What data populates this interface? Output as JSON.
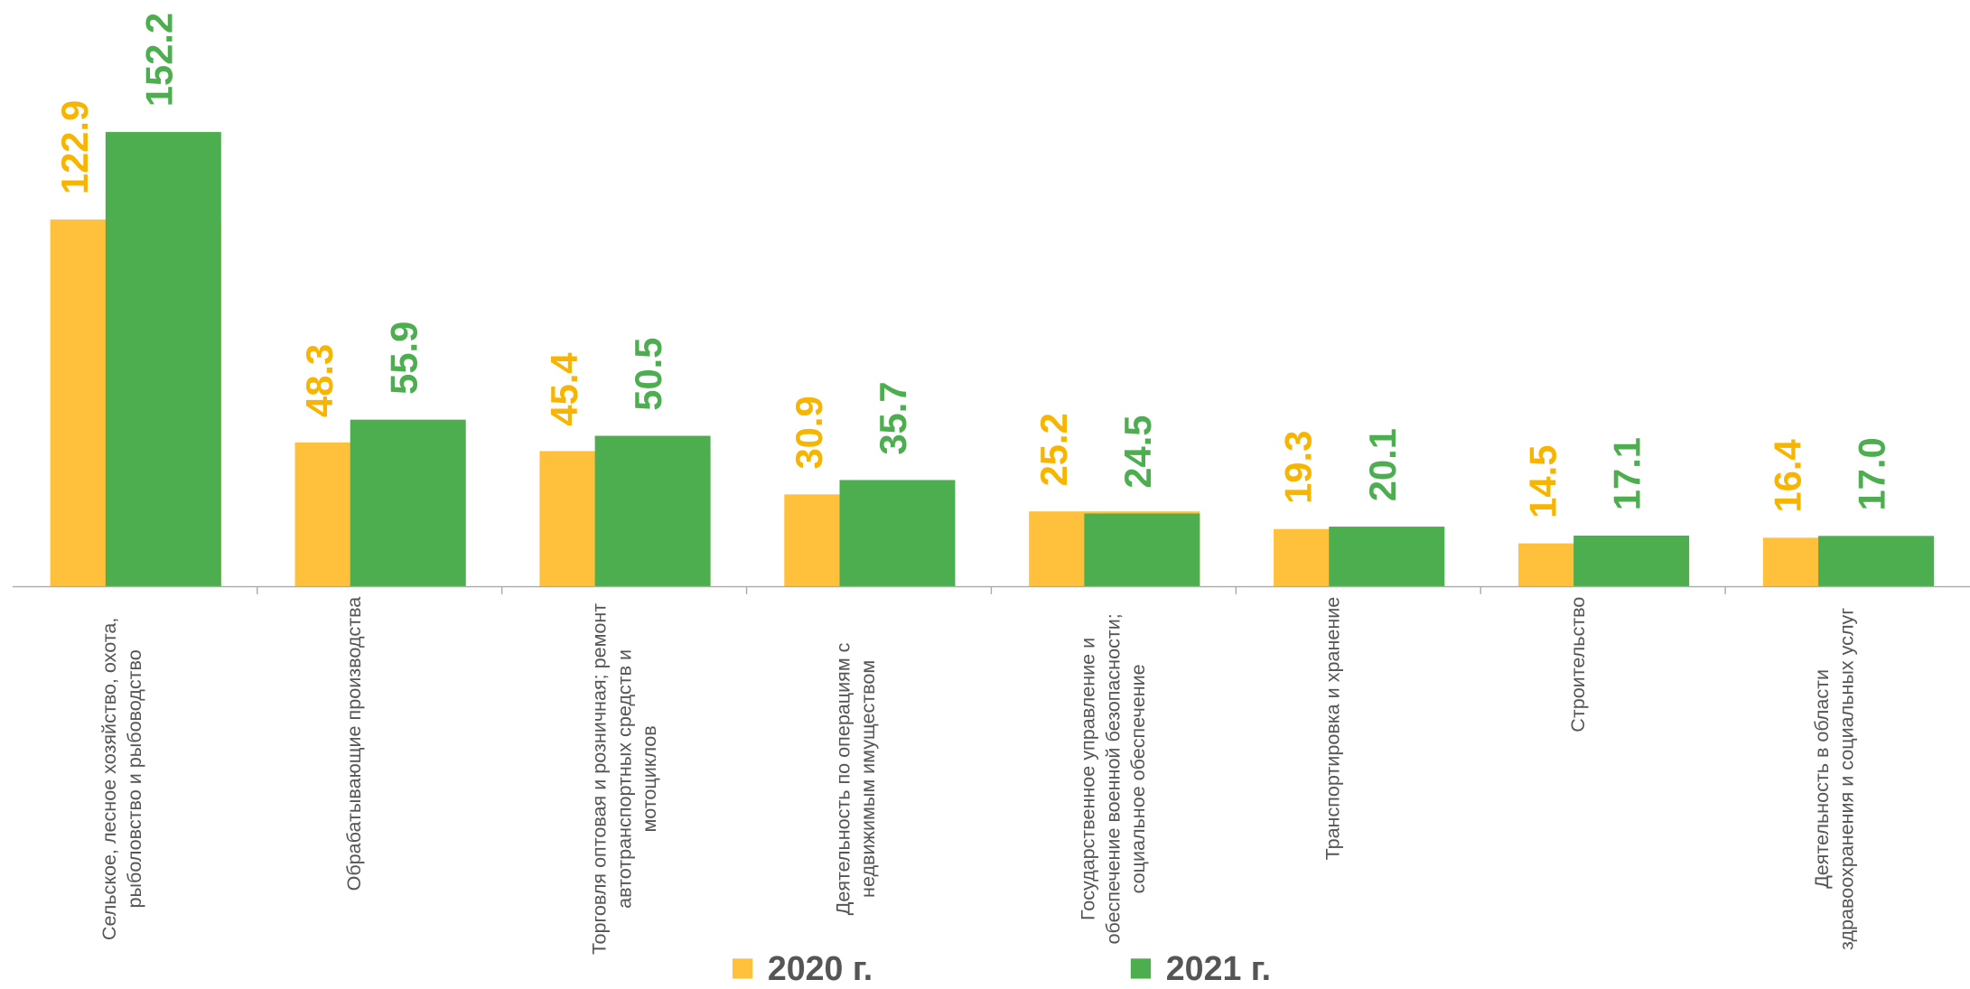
{
  "chart_data": {
    "type": "bar",
    "categories": [
      "Сельское, лесное хозяйство, охота, рыболовство и рыбоводство",
      "Обрабатывающие производства",
      "Торговля оптовая и розничная; ремонт автотранспортных средств и мотоциклов",
      "Деятельность по операциям с недвижимым имуществом",
      "Государственное управление и обеспечение военной безопасности; социальное обеспечение",
      "Транспортировка и хранение",
      "Строительство",
      "Деятельность в области здравоохранения и социальных услуг"
    ],
    "series": [
      {
        "name": "2020 г.",
        "color": "#FFC13B",
        "label_color": "#F7B500",
        "values": [
          122.9,
          48.3,
          45.4,
          30.9,
          25.2,
          19.3,
          14.5,
          16.4
        ],
        "value_labels": [
          "122.9",
          "48.3",
          "45.4",
          "30.9",
          "25.2",
          "19.3",
          "14.5",
          "16.4"
        ]
      },
      {
        "name": "2021 г.",
        "color": "#4DAE4F",
        "label_color": "#4DAE4F",
        "values": [
          152.2,
          55.9,
          50.5,
          35.7,
          24.5,
          20.1,
          17.1,
          17.0
        ],
        "value_labels": [
          "152.2",
          "55.9",
          "50.5",
          "35.7",
          "24.5",
          "20.1",
          "17.1",
          "17.0"
        ]
      }
    ],
    "ylim": [
      0,
      160
    ],
    "legend": "bottom"
  }
}
